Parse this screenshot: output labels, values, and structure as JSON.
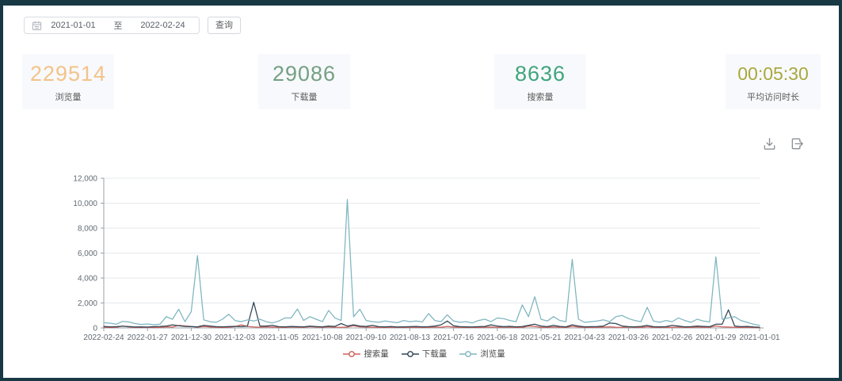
{
  "page": {
    "frame_color": "#183944",
    "background": "#ffffff",
    "card_background": "#f8f9fc"
  },
  "toolbar": {
    "date_start": "2021-01-01",
    "date_separator": "至",
    "date_end": "2022-02-24",
    "query_label": "查询"
  },
  "stats": [
    {
      "value": "229514",
      "label": "浏览量",
      "color": "#f3c389"
    },
    {
      "value": "29086",
      "label": "下载量",
      "color": "#74a083"
    },
    {
      "value": "8636",
      "label": "搜索量",
      "color": "#3fa57c"
    },
    {
      "value": "00:05:30",
      "label": "平均访问时长",
      "color": "#a8a83c"
    }
  ],
  "chart_actions": {
    "download_icon": "download-chart",
    "export_icon": "export-data"
  },
  "chart_data": {
    "type": "line",
    "title": "",
    "xlabel": "",
    "ylabel": "",
    "x_labels": [
      "2022-02-24",
      "2022-01-27",
      "2021-12-30",
      "2021-12-03",
      "2021-11-05",
      "2021-10-08",
      "2021-09-10",
      "2021-08-13",
      "2021-07-16",
      "2021-06-18",
      "2021-05-21",
      "2021-04-23",
      "2021-03-26",
      "2021-02-26",
      "2021-01-29",
      "2021-01-01"
    ],
    "x_direction": "dates descend from left (2022-02-24) to right (2021-01-01), daily series sampled to 106 points",
    "ylim": [
      0,
      12000
    ],
    "y_ticks": [
      0,
      2000,
      4000,
      6000,
      8000,
      10000,
      12000
    ],
    "y_tick_labels": [
      "0",
      "2,000",
      "4,000",
      "6,000",
      "8,000",
      "10,000",
      "12,000"
    ],
    "grid": true,
    "legend_position": "bottom",
    "series": [
      {
        "name": "搜索量",
        "color": "#cf5f58",
        "values": [
          60,
          40,
          50,
          150,
          80,
          50,
          40,
          60,
          30,
          50,
          90,
          70,
          200,
          160,
          120,
          60,
          120,
          80,
          50,
          40,
          60,
          100,
          250,
          120,
          80,
          60,
          90,
          70,
          50,
          40,
          80,
          60,
          50,
          100,
          70,
          50,
          90,
          60,
          50,
          70,
          180,
          90,
          70,
          60,
          50,
          40,
          60,
          50,
          40,
          60,
          50,
          60,
          40,
          80,
          60,
          120,
          70,
          50,
          40,
          50,
          40,
          60,
          80,
          50,
          70,
          60,
          50,
          40,
          150,
          120,
          60,
          50,
          90,
          60,
          40,
          130,
          70,
          50,
          40,
          60,
          70,
          90,
          60,
          50,
          80,
          60,
          40,
          100,
          50,
          40,
          60,
          50,
          70,
          50,
          40,
          80,
          60,
          50,
          160,
          90,
          70,
          50,
          40,
          60,
          30,
          20
        ]
      },
      {
        "name": "下载量",
        "color": "#2f4554",
        "values": [
          120,
          90,
          100,
          140,
          110,
          80,
          90,
          70,
          100,
          120,
          150,
          250,
          180,
          120,
          100,
          90,
          200,
          150,
          100,
          90,
          110,
          130,
          100,
          150,
          2050,
          150,
          150,
          200,
          100,
          90,
          120,
          100,
          90,
          140,
          110,
          90,
          150,
          120,
          350,
          150,
          250,
          150,
          120,
          200,
          100,
          90,
          110,
          80,
          90,
          100,
          120,
          90,
          100,
          150,
          250,
          550,
          180,
          100,
          90,
          80,
          100,
          120,
          250,
          150,
          100,
          130,
          90,
          110,
          200,
          300,
          150,
          100,
          200,
          120,
          90,
          250,
          150,
          90,
          100,
          110,
          150,
          400,
          350,
          150,
          100,
          90,
          120,
          200,
          100,
          90,
          100,
          200,
          150,
          90,
          100,
          150,
          120,
          100,
          300,
          300,
          1450,
          150,
          100,
          120,
          80,
          60
        ]
      },
      {
        "name": "浏览量",
        "color": "#7db5bf",
        "values": [
          420,
          380,
          300,
          520,
          480,
          350,
          280,
          320,
          260,
          300,
          900,
          700,
          1500,
          500,
          1300,
          5800,
          650,
          500,
          450,
          700,
          1100,
          600,
          500,
          650,
          550,
          700,
          500,
          400,
          550,
          800,
          800,
          1520,
          600,
          900,
          700,
          500,
          1400,
          800,
          600,
          10300,
          900,
          1500,
          600,
          500,
          450,
          550,
          480,
          420,
          600,
          500,
          550,
          480,
          1150,
          600,
          500,
          1050,
          550,
          450,
          500,
          400,
          600,
          700,
          500,
          800,
          750,
          600,
          500,
          1850,
          900,
          2500,
          700,
          550,
          900,
          600,
          500,
          5500,
          700,
          450,
          500,
          550,
          650,
          500,
          900,
          1000,
          750,
          600,
          500,
          1650,
          550,
          450,
          600,
          500,
          800,
          600,
          450,
          700,
          550,
          480,
          5700,
          700,
          800,
          900,
          600,
          450,
          300,
          200
        ]
      }
    ]
  }
}
